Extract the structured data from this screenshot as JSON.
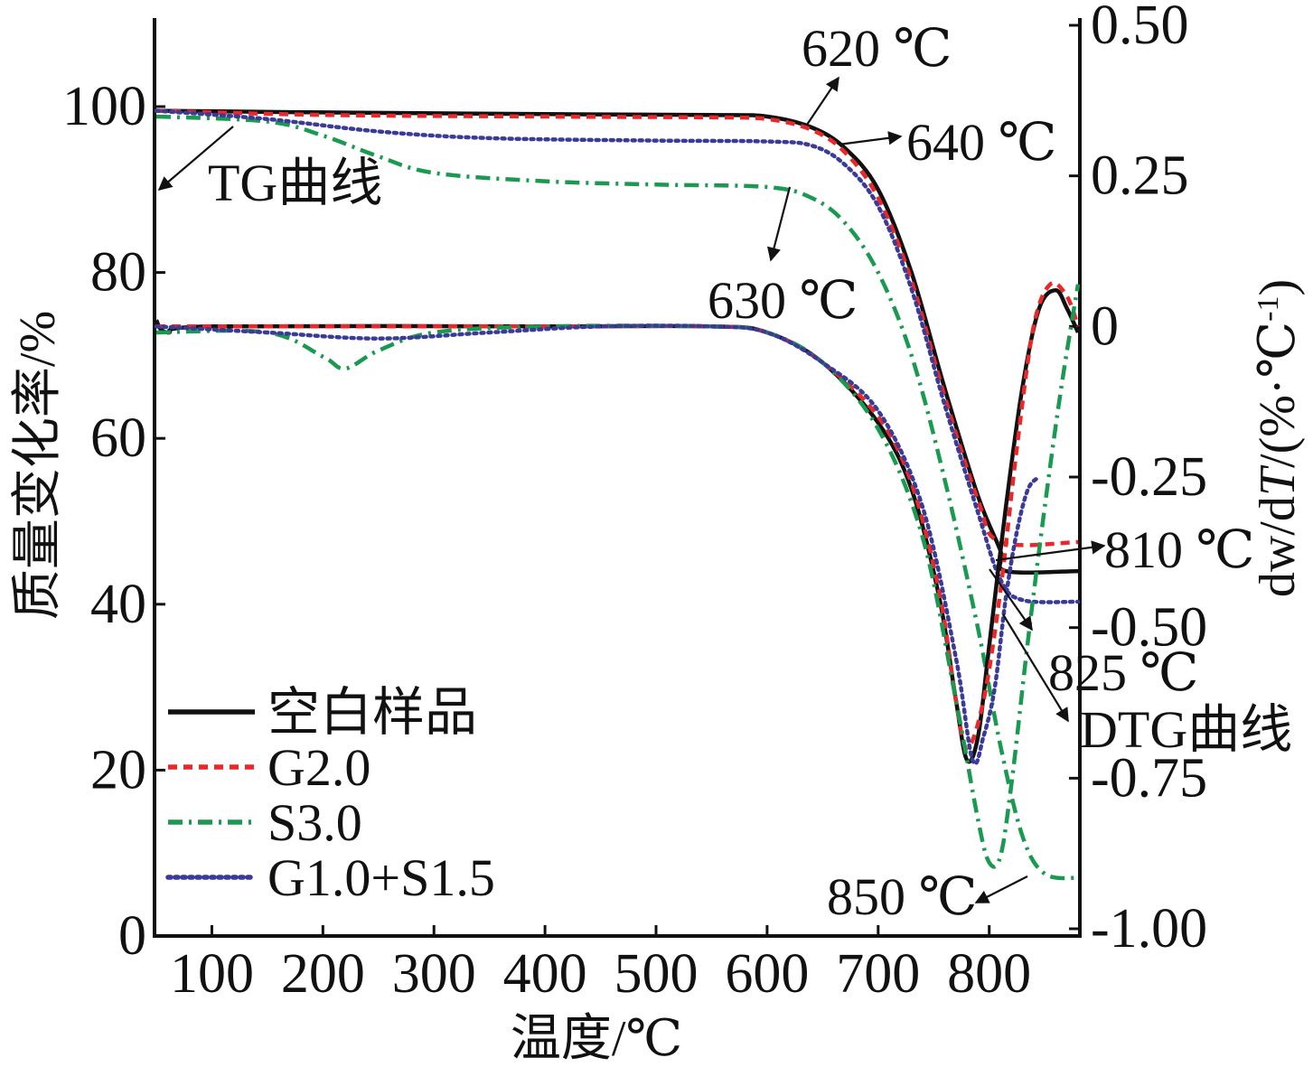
{
  "chart_data": {
    "type": "line",
    "title": "",
    "xlabel": "温度/℃",
    "ylabel_left": "质量变化率/%",
    "ylabel_right_parts": [
      "dw/d",
      "T",
      "/(%·℃",
      "-1",
      ")"
    ],
    "xlim": [
      50,
      880
    ],
    "ylim_left": [
      0,
      110
    ],
    "ylim_right": [
      -1.0,
      0.5
    ],
    "x_ticks": [
      100,
      200,
      300,
      400,
      500,
      600,
      700,
      800
    ],
    "x_tick_labels": [
      "100",
      "200",
      "300",
      "400",
      "500",
      "600",
      "700",
      "800"
    ],
    "y_left_ticks": [
      0,
      20,
      40,
      60,
      80,
      100
    ],
    "y_left_tick_labels": [
      "0",
      "20",
      "40",
      "60",
      "80",
      "100"
    ],
    "y_right_ticks": [
      0.5,
      0.25,
      0,
      -0.25,
      -0.5,
      -0.75,
      -1.0
    ],
    "y_right_tick_labels": [
      "0.50",
      "0.25",
      "0",
      "-0.25",
      "-0.50",
      "-0.75",
      "-1.00"
    ],
    "grid": false,
    "legend_position": "bottom-left",
    "series": [
      {
        "name": "空白样品",
        "kind": "TG",
        "axis": "left",
        "color": "#111111",
        "dash": "solid",
        "points": [
          [
            50,
            99.5
          ],
          [
            200,
            99.3
          ],
          [
            400,
            99.1
          ],
          [
            550,
            99.0
          ],
          [
            600,
            98.8
          ],
          [
            640,
            97.5
          ],
          [
            670,
            95.0
          ],
          [
            700,
            90.0
          ],
          [
            730,
            80.0
          ],
          [
            760,
            66.0
          ],
          [
            790,
            53.0
          ],
          [
            810,
            46.5
          ],
          [
            815,
            44.0
          ],
          [
            880,
            44.0
          ]
        ]
      },
      {
        "name": "G2.0",
        "kind": "TG",
        "axis": "left",
        "color": "#e8282b",
        "dash": "10,7",
        "points": [
          [
            50,
            99.5
          ],
          [
            200,
            99.0
          ],
          [
            400,
            98.8
          ],
          [
            550,
            98.7
          ],
          [
            600,
            98.5
          ],
          [
            640,
            97.2
          ],
          [
            670,
            94.5
          ],
          [
            700,
            89.0
          ],
          [
            730,
            79.0
          ],
          [
            760,
            65.0
          ],
          [
            790,
            52.5
          ],
          [
            810,
            47.5
          ],
          [
            880,
            47.5
          ]
        ]
      },
      {
        "name": "S3.0",
        "kind": "TG",
        "axis": "left",
        "color": "#1a9a50",
        "dash": "16,7,3,7",
        "points": [
          [
            50,
            98.8
          ],
          [
            150,
            98.2
          ],
          [
            200,
            96.5
          ],
          [
            250,
            94.0
          ],
          [
            300,
            92.0
          ],
          [
            400,
            91.0
          ],
          [
            500,
            90.6
          ],
          [
            600,
            90.3
          ],
          [
            640,
            89.0
          ],
          [
            670,
            86.0
          ],
          [
            700,
            80.0
          ],
          [
            730,
            70.0
          ],
          [
            760,
            55.0
          ],
          [
            790,
            37.0
          ],
          [
            810,
            23.0
          ],
          [
            830,
            12.0
          ],
          [
            850,
            7.5
          ],
          [
            880,
            7.0
          ]
        ]
      },
      {
        "name": "G1.0+S1.5",
        "kind": "TG",
        "axis": "left",
        "color": "#3a3a98",
        "dash": "3,5",
        "points": [
          [
            50,
            99.5
          ],
          [
            150,
            98.5
          ],
          [
            250,
            97.0
          ],
          [
            350,
            96.2
          ],
          [
            500,
            95.9
          ],
          [
            600,
            95.8
          ],
          [
            640,
            95.3
          ],
          [
            670,
            93.0
          ],
          [
            700,
            88.0
          ],
          [
            730,
            78.0
          ],
          [
            760,
            64.0
          ],
          [
            790,
            51.0
          ],
          [
            810,
            43.0
          ],
          [
            830,
            40.5
          ],
          [
            880,
            40.3
          ]
        ]
      },
      {
        "name": "空白样品",
        "kind": "DTG",
        "axis": "right",
        "color": "#111111",
        "dash": "solid",
        "points": [
          [
            50,
            0.01
          ],
          [
            60,
            -0.01
          ],
          [
            100,
            0.0
          ],
          [
            400,
            0.0
          ],
          [
            550,
            0.0
          ],
          [
            600,
            -0.01
          ],
          [
            650,
            -0.06
          ],
          [
            700,
            -0.16
          ],
          [
            730,
            -0.27
          ],
          [
            755,
            -0.45
          ],
          [
            770,
            -0.62
          ],
          [
            780,
            -0.72
          ],
          [
            790,
            -0.68
          ],
          [
            800,
            -0.53
          ],
          [
            815,
            -0.3
          ],
          [
            830,
            -0.1
          ],
          [
            845,
            0.03
          ],
          [
            860,
            0.06
          ],
          [
            870,
            0.03
          ],
          [
            880,
            -0.01
          ]
        ]
      },
      {
        "name": "G2.0",
        "kind": "DTG",
        "axis": "right",
        "color": "#e8282b",
        "dash": "10,7",
        "points": [
          [
            50,
            0.0
          ],
          [
            400,
            0.0
          ],
          [
            550,
            0.0
          ],
          [
            600,
            -0.01
          ],
          [
            650,
            -0.06
          ],
          [
            700,
            -0.15
          ],
          [
            730,
            -0.26
          ],
          [
            755,
            -0.44
          ],
          [
            770,
            -0.62
          ],
          [
            780,
            -0.7
          ],
          [
            795,
            -0.62
          ],
          [
            810,
            -0.44
          ],
          [
            825,
            -0.2
          ],
          [
            840,
            0.0
          ],
          [
            855,
            0.07
          ],
          [
            870,
            0.05
          ],
          [
            880,
            0.0
          ]
        ]
      },
      {
        "name": "S3.0",
        "kind": "DTG",
        "axis": "right",
        "color": "#1a9a50",
        "dash": "16,7,3,7",
        "points": [
          [
            50,
            -0.01
          ],
          [
            150,
            -0.01
          ],
          [
            200,
            -0.05
          ],
          [
            220,
            -0.07
          ],
          [
            250,
            -0.04
          ],
          [
            300,
            -0.01
          ],
          [
            400,
            0.0
          ],
          [
            550,
            0.0
          ],
          [
            600,
            -0.01
          ],
          [
            650,
            -0.06
          ],
          [
            700,
            -0.17
          ],
          [
            740,
            -0.35
          ],
          [
            770,
            -0.62
          ],
          [
            790,
            -0.82
          ],
          [
            800,
            -0.89
          ],
          [
            810,
            -0.88
          ],
          [
            820,
            -0.76
          ],
          [
            835,
            -0.52
          ],
          [
            850,
            -0.3
          ],
          [
            865,
            -0.1
          ],
          [
            880,
            0.07
          ]
        ]
      },
      {
        "name": "G1.0+S1.5",
        "kind": "DTG",
        "axis": "right",
        "color": "#3a3a98",
        "dash": "3,5",
        "points": [
          [
            50,
            0.0
          ],
          [
            150,
            -0.01
          ],
          [
            250,
            -0.02
          ],
          [
            350,
            -0.01
          ],
          [
            450,
            0.0
          ],
          [
            550,
            0.0
          ],
          [
            600,
            -0.01
          ],
          [
            650,
            -0.06
          ],
          [
            700,
            -0.14
          ],
          [
            740,
            -0.3
          ],
          [
            770,
            -0.55
          ],
          [
            785,
            -0.72
          ],
          [
            795,
            -0.68
          ],
          [
            805,
            -0.6
          ],
          [
            815,
            -0.45
          ],
          [
            825,
            -0.34
          ],
          [
            835,
            -0.27
          ],
          [
            845,
            -0.25
          ]
        ]
      }
    ],
    "annotations": {
      "curve_labels": [
        "TG曲线",
        "DTG曲线"
      ],
      "temps": [
        "620 ℃",
        "640 ℃",
        "630 ℃",
        "810 ℃",
        "825 ℃",
        "850 ℃"
      ]
    }
  }
}
